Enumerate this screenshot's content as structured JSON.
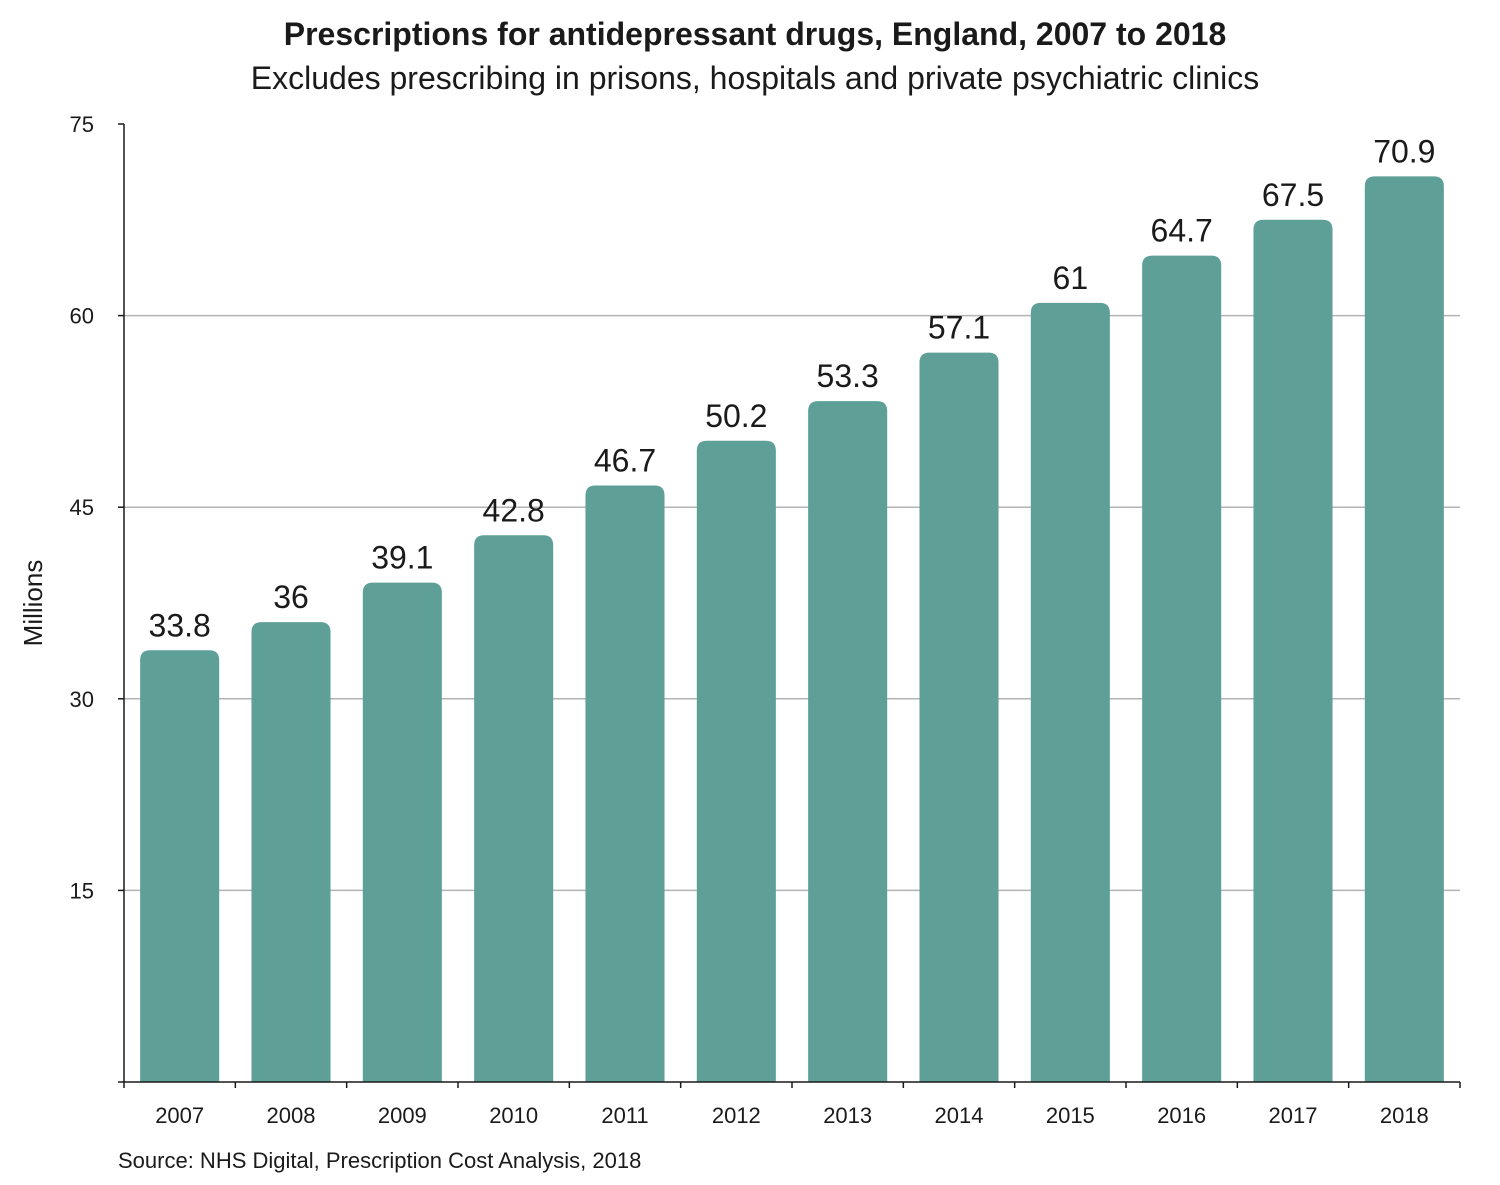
{
  "chart_data": {
    "type": "bar",
    "title": "Prescriptions for antidepressant drugs, England, 2007 to 2018",
    "subtitle": "Excludes prescribing in prisons, hospitals and private psychiatric clinics",
    "categories": [
      "2007",
      "2008",
      "2009",
      "2010",
      "2011",
      "2012",
      "2013",
      "2014",
      "2015",
      "2016",
      "2017",
      "2018"
    ],
    "values": [
      33.8,
      36,
      39.1,
      42.8,
      46.7,
      50.2,
      53.3,
      57.1,
      61,
      64.7,
      67.5,
      70.9
    ],
    "data_labels": [
      "33.8",
      "36",
      "39.1",
      "42.8",
      "46.7",
      "50.2",
      "53.3",
      "57.1",
      "61",
      "64.7",
      "67.5",
      "70.9"
    ],
    "xlabel": "",
    "ylabel": "Millions",
    "ylim": [
      0,
      75
    ],
    "yticks": [
      15,
      30,
      45,
      60,
      75
    ],
    "ytick_labels": [
      "15",
      "30",
      "45",
      "60",
      "75"
    ],
    "grid": true,
    "bar_color": "#5e9f98",
    "grid_color": "#b3b3b3",
    "source": "Source: NHS Digital, Prescription Cost Analysis, 2018"
  }
}
